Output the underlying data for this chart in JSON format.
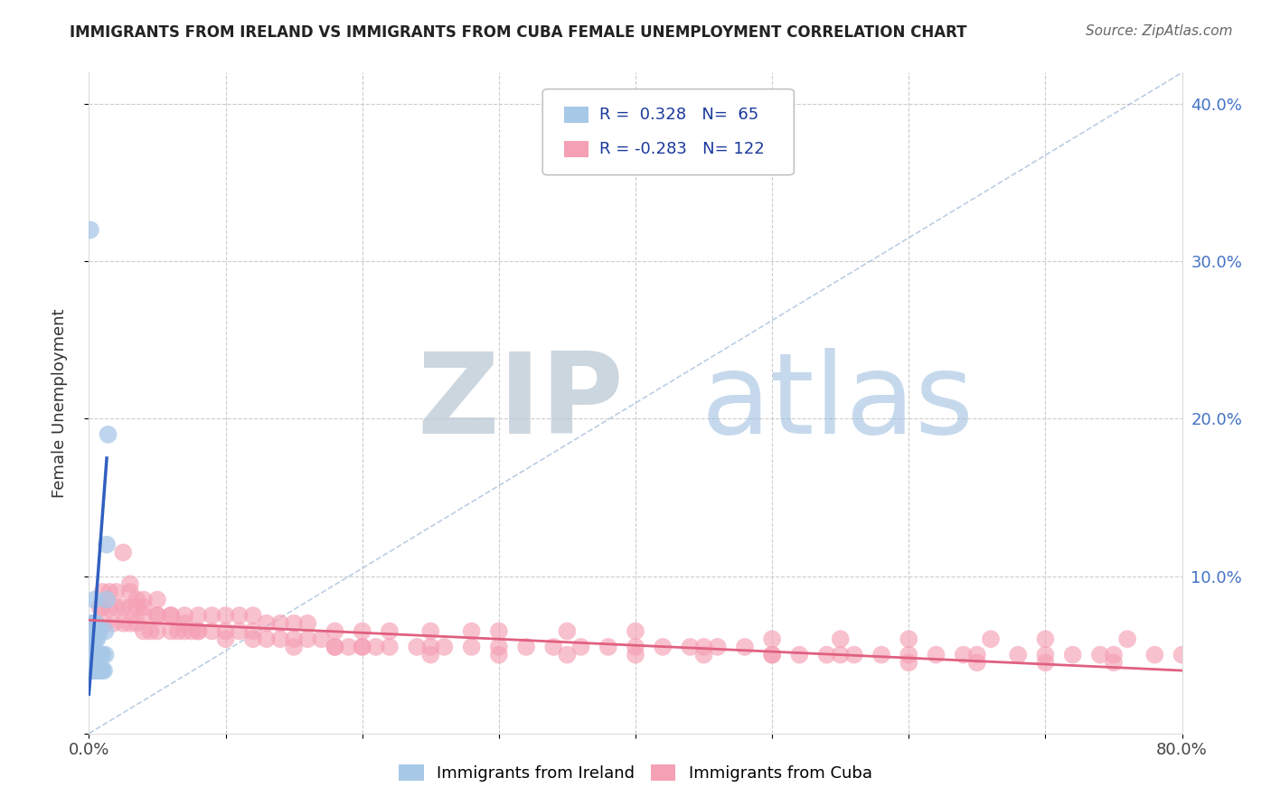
{
  "title": "IMMIGRANTS FROM IRELAND VS IMMIGRANTS FROM CUBA FEMALE UNEMPLOYMENT CORRELATION CHART",
  "source": "Source: ZipAtlas.com",
  "ylabel": "Female Unemployment",
  "xlim": [
    0.0,
    0.8
  ],
  "ylim": [
    0.0,
    0.42
  ],
  "x_ticks": [
    0.0,
    0.1,
    0.2,
    0.3,
    0.4,
    0.5,
    0.6,
    0.7,
    0.8
  ],
  "x_tick_labels": [
    "0.0%",
    "",
    "",
    "",
    "",
    "",
    "",
    "",
    "80.0%"
  ],
  "y_ticks": [
    0.0,
    0.1,
    0.2,
    0.3,
    0.4
  ],
  "y_tick_labels_right": [
    "",
    "10.0%",
    "20.0%",
    "30.0%",
    "40.0%"
  ],
  "ireland_R": "0.328",
  "ireland_N": "65",
  "cuba_R": "-0.283",
  "cuba_N": "122",
  "ireland_label": "Immigrants from Ireland",
  "cuba_label": "Immigrants from Cuba",
  "ireland_color": "#a8c8e8",
  "cuba_color": "#f5a0b5",
  "ireland_line_color": "#3060c0",
  "cuba_line_color": "#e06080",
  "diag_color": "#a0b8d8",
  "background_color": "#ffffff",
  "grid_color": "#cccccc",
  "title_color": "#222222",
  "source_color": "#666666",
  "watermark_ZIP": "ZIP",
  "watermark_atlas": "atlas",
  "watermark_ZIP_color": "#c0ccd8",
  "watermark_atlas_color": "#a0c0e0",
  "legend_text_color": "#1a3a9c",
  "ireland_trend_x0": 0.0,
  "ireland_trend_y0": 0.025,
  "ireland_trend_x1": 0.013,
  "ireland_trend_y1": 0.175,
  "cuba_trend_x0": 0.0,
  "cuba_trend_y0": 0.072,
  "cuba_trend_x1": 0.8,
  "cuba_trend_y1": 0.04,
  "ireland_x": [
    0.0005,
    0.0008,
    0.001,
    0.001,
    0.0012,
    0.0013,
    0.0013,
    0.0015,
    0.0015,
    0.0016,
    0.0017,
    0.0018,
    0.002,
    0.002,
    0.002,
    0.002,
    0.002,
    0.0022,
    0.0023,
    0.0025,
    0.0025,
    0.0027,
    0.003,
    0.003,
    0.003,
    0.003,
    0.0032,
    0.0035,
    0.0035,
    0.004,
    0.004,
    0.004,
    0.004,
    0.0042,
    0.0045,
    0.005,
    0.005,
    0.005,
    0.005,
    0.006,
    0.006,
    0.006,
    0.007,
    0.007,
    0.008,
    0.008,
    0.009,
    0.009,
    0.01,
    0.01,
    0.011,
    0.012,
    0.012,
    0.013,
    0.013,
    0.014,
    0.0005,
    0.001,
    0.0015,
    0.002,
    0.003,
    0.004,
    0.005,
    0.006,
    0.008
  ],
  "ireland_y": [
    0.04,
    0.05,
    0.06,
    0.05,
    0.04,
    0.05,
    0.06,
    0.04,
    0.05,
    0.05,
    0.06,
    0.04,
    0.04,
    0.05,
    0.06,
    0.07,
    0.05,
    0.04,
    0.05,
    0.05,
    0.06,
    0.04,
    0.04,
    0.05,
    0.06,
    0.07,
    0.05,
    0.04,
    0.05,
    0.04,
    0.05,
    0.065,
    0.085,
    0.04,
    0.05,
    0.04,
    0.05,
    0.06,
    0.07,
    0.04,
    0.05,
    0.06,
    0.04,
    0.05,
    0.04,
    0.05,
    0.04,
    0.05,
    0.04,
    0.05,
    0.04,
    0.05,
    0.065,
    0.085,
    0.12,
    0.19,
    0.065,
    0.32,
    0.065,
    0.065,
    0.065,
    0.065,
    0.065,
    0.065,
    0.065
  ],
  "cuba_x": [
    0.005,
    0.008,
    0.01,
    0.01,
    0.012,
    0.015,
    0.015,
    0.018,
    0.02,
    0.02,
    0.025,
    0.025,
    0.03,
    0.03,
    0.03,
    0.035,
    0.035,
    0.04,
    0.04,
    0.04,
    0.045,
    0.05,
    0.05,
    0.05,
    0.06,
    0.06,
    0.065,
    0.07,
    0.07,
    0.075,
    0.08,
    0.08,
    0.09,
    0.09,
    0.1,
    0.1,
    0.11,
    0.11,
    0.12,
    0.12,
    0.13,
    0.13,
    0.14,
    0.14,
    0.15,
    0.15,
    0.16,
    0.16,
    0.17,
    0.18,
    0.18,
    0.19,
    0.2,
    0.2,
    0.21,
    0.22,
    0.22,
    0.24,
    0.25,
    0.25,
    0.26,
    0.28,
    0.28,
    0.3,
    0.3,
    0.32,
    0.34,
    0.35,
    0.36,
    0.38,
    0.4,
    0.4,
    0.42,
    0.44,
    0.45,
    0.46,
    0.48,
    0.5,
    0.5,
    0.52,
    0.54,
    0.55,
    0.56,
    0.58,
    0.6,
    0.6,
    0.62,
    0.64,
    0.65,
    0.66,
    0.68,
    0.7,
    0.7,
    0.72,
    0.74,
    0.75,
    0.76,
    0.78,
    0.8,
    0.025,
    0.03,
    0.035,
    0.04,
    0.05,
    0.06,
    0.07,
    0.08,
    0.1,
    0.12,
    0.15,
    0.18,
    0.2,
    0.25,
    0.3,
    0.35,
    0.4,
    0.45,
    0.5,
    0.55,
    0.6,
    0.65,
    0.7,
    0.75
  ],
  "cuba_y": [
    0.07,
    0.08,
    0.08,
    0.09,
    0.07,
    0.08,
    0.09,
    0.07,
    0.08,
    0.09,
    0.08,
    0.07,
    0.07,
    0.08,
    0.09,
    0.07,
    0.08,
    0.065,
    0.075,
    0.085,
    0.065,
    0.065,
    0.075,
    0.085,
    0.065,
    0.075,
    0.065,
    0.065,
    0.075,
    0.065,
    0.065,
    0.075,
    0.065,
    0.075,
    0.065,
    0.075,
    0.065,
    0.075,
    0.065,
    0.075,
    0.06,
    0.07,
    0.06,
    0.07,
    0.06,
    0.07,
    0.06,
    0.07,
    0.06,
    0.055,
    0.065,
    0.055,
    0.055,
    0.065,
    0.055,
    0.055,
    0.065,
    0.055,
    0.055,
    0.065,
    0.055,
    0.055,
    0.065,
    0.055,
    0.065,
    0.055,
    0.055,
    0.065,
    0.055,
    0.055,
    0.055,
    0.065,
    0.055,
    0.055,
    0.055,
    0.055,
    0.055,
    0.05,
    0.06,
    0.05,
    0.05,
    0.06,
    0.05,
    0.05,
    0.05,
    0.06,
    0.05,
    0.05,
    0.05,
    0.06,
    0.05,
    0.05,
    0.06,
    0.05,
    0.05,
    0.05,
    0.06,
    0.05,
    0.05,
    0.115,
    0.095,
    0.085,
    0.08,
    0.075,
    0.075,
    0.07,
    0.065,
    0.06,
    0.06,
    0.055,
    0.055,
    0.055,
    0.05,
    0.05,
    0.05,
    0.05,
    0.05,
    0.05,
    0.05,
    0.045,
    0.045,
    0.045,
    0.045
  ]
}
